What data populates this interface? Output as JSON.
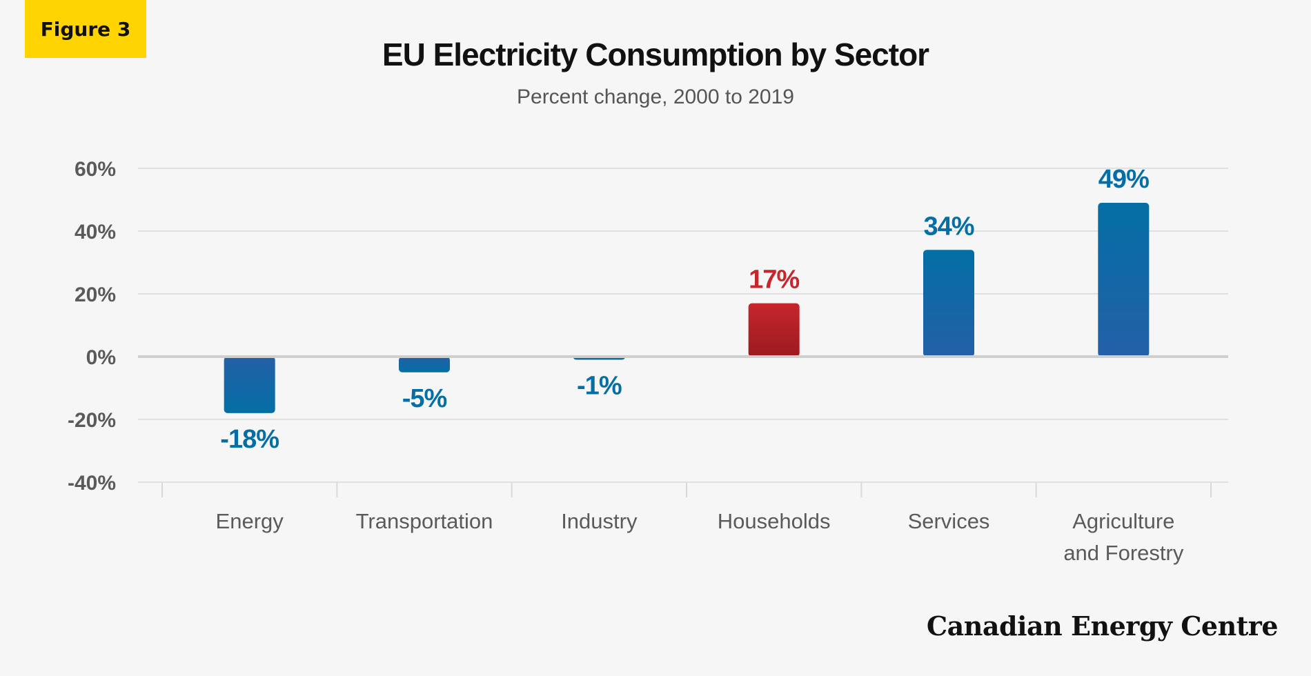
{
  "badge": "Figure 3",
  "title": "EU Electricity Consumption by Sector",
  "subtitle": "Percent change, 2000 to 2019",
  "brand": "Canadian Energy Centre",
  "colors": {
    "blue": "#046ea5",
    "blue_dark": "#2460a7",
    "red": "#c6262c",
    "red_dark": "#9c1a20",
    "axis_text": "#5a5a5a",
    "grid": "#d9d9d9",
    "zero_line": "#cfcfcf"
  },
  "chart_data": {
    "type": "bar",
    "categories": [
      "Energy",
      "Transportation",
      "Industry",
      "Households",
      "Services",
      "Agriculture and Forestry"
    ],
    "category_lines": [
      [
        "Energy"
      ],
      [
        "Transportation"
      ],
      [
        "Industry"
      ],
      [
        "Households"
      ],
      [
        "Services"
      ],
      [
        "Agriculture",
        "and Forestry"
      ]
    ],
    "values": [
      -18,
      -5,
      -1,
      17,
      34,
      49
    ],
    "data_labels": [
      "-18%",
      "-5%",
      "-1%",
      "17%",
      "34%",
      "49%"
    ],
    "highlight_index": 3,
    "yticks": [
      60,
      40,
      20,
      0,
      -20,
      -40
    ],
    "ytick_labels": [
      "60%",
      "40%",
      "20%",
      "0%",
      "-20%",
      "-40%"
    ],
    "ylim": [
      -40,
      60
    ],
    "grid": true
  }
}
